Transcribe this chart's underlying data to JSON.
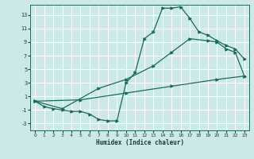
{
  "xlabel": "Humidex (Indice chaleur)",
  "bg_color": "#cce8e8",
  "grid_color": "#ffffff",
  "line_color": "#1a6b5a",
  "xlim": [
    -0.5,
    23.5
  ],
  "ylim": [
    -4.0,
    14.5
  ],
  "xticks": [
    0,
    1,
    2,
    3,
    4,
    5,
    6,
    7,
    8,
    9,
    10,
    11,
    12,
    13,
    14,
    15,
    16,
    17,
    18,
    19,
    20,
    21,
    22,
    23
  ],
  "yticks": [
    -3,
    -1,
    1,
    3,
    5,
    7,
    9,
    11,
    13
  ],
  "line1_x": [
    0,
    1,
    2,
    3,
    4,
    5,
    6,
    7,
    8,
    9,
    10,
    11,
    12,
    13,
    14,
    15,
    16,
    17,
    18,
    19,
    20,
    21,
    22,
    23
  ],
  "line1_y": [
    0.3,
    -0.5,
    -0.8,
    -1.0,
    -1.2,
    -1.2,
    -1.6,
    -2.4,
    -2.6,
    -2.6,
    3.0,
    4.5,
    9.5,
    10.5,
    14.0,
    14.0,
    14.2,
    12.5,
    10.5,
    10.0,
    9.2,
    8.5,
    8.0,
    6.5
  ],
  "line2_x": [
    0,
    3,
    7,
    10,
    13,
    15,
    17,
    19,
    20,
    21,
    22,
    23
  ],
  "line2_y": [
    0.3,
    -0.8,
    2.2,
    3.5,
    5.5,
    7.5,
    9.5,
    9.2,
    9.0,
    8.0,
    7.5,
    4.0
  ],
  "line3_x": [
    0,
    5,
    10,
    15,
    20,
    23
  ],
  "line3_y": [
    0.3,
    0.5,
    1.5,
    2.5,
    3.5,
    4.0
  ]
}
